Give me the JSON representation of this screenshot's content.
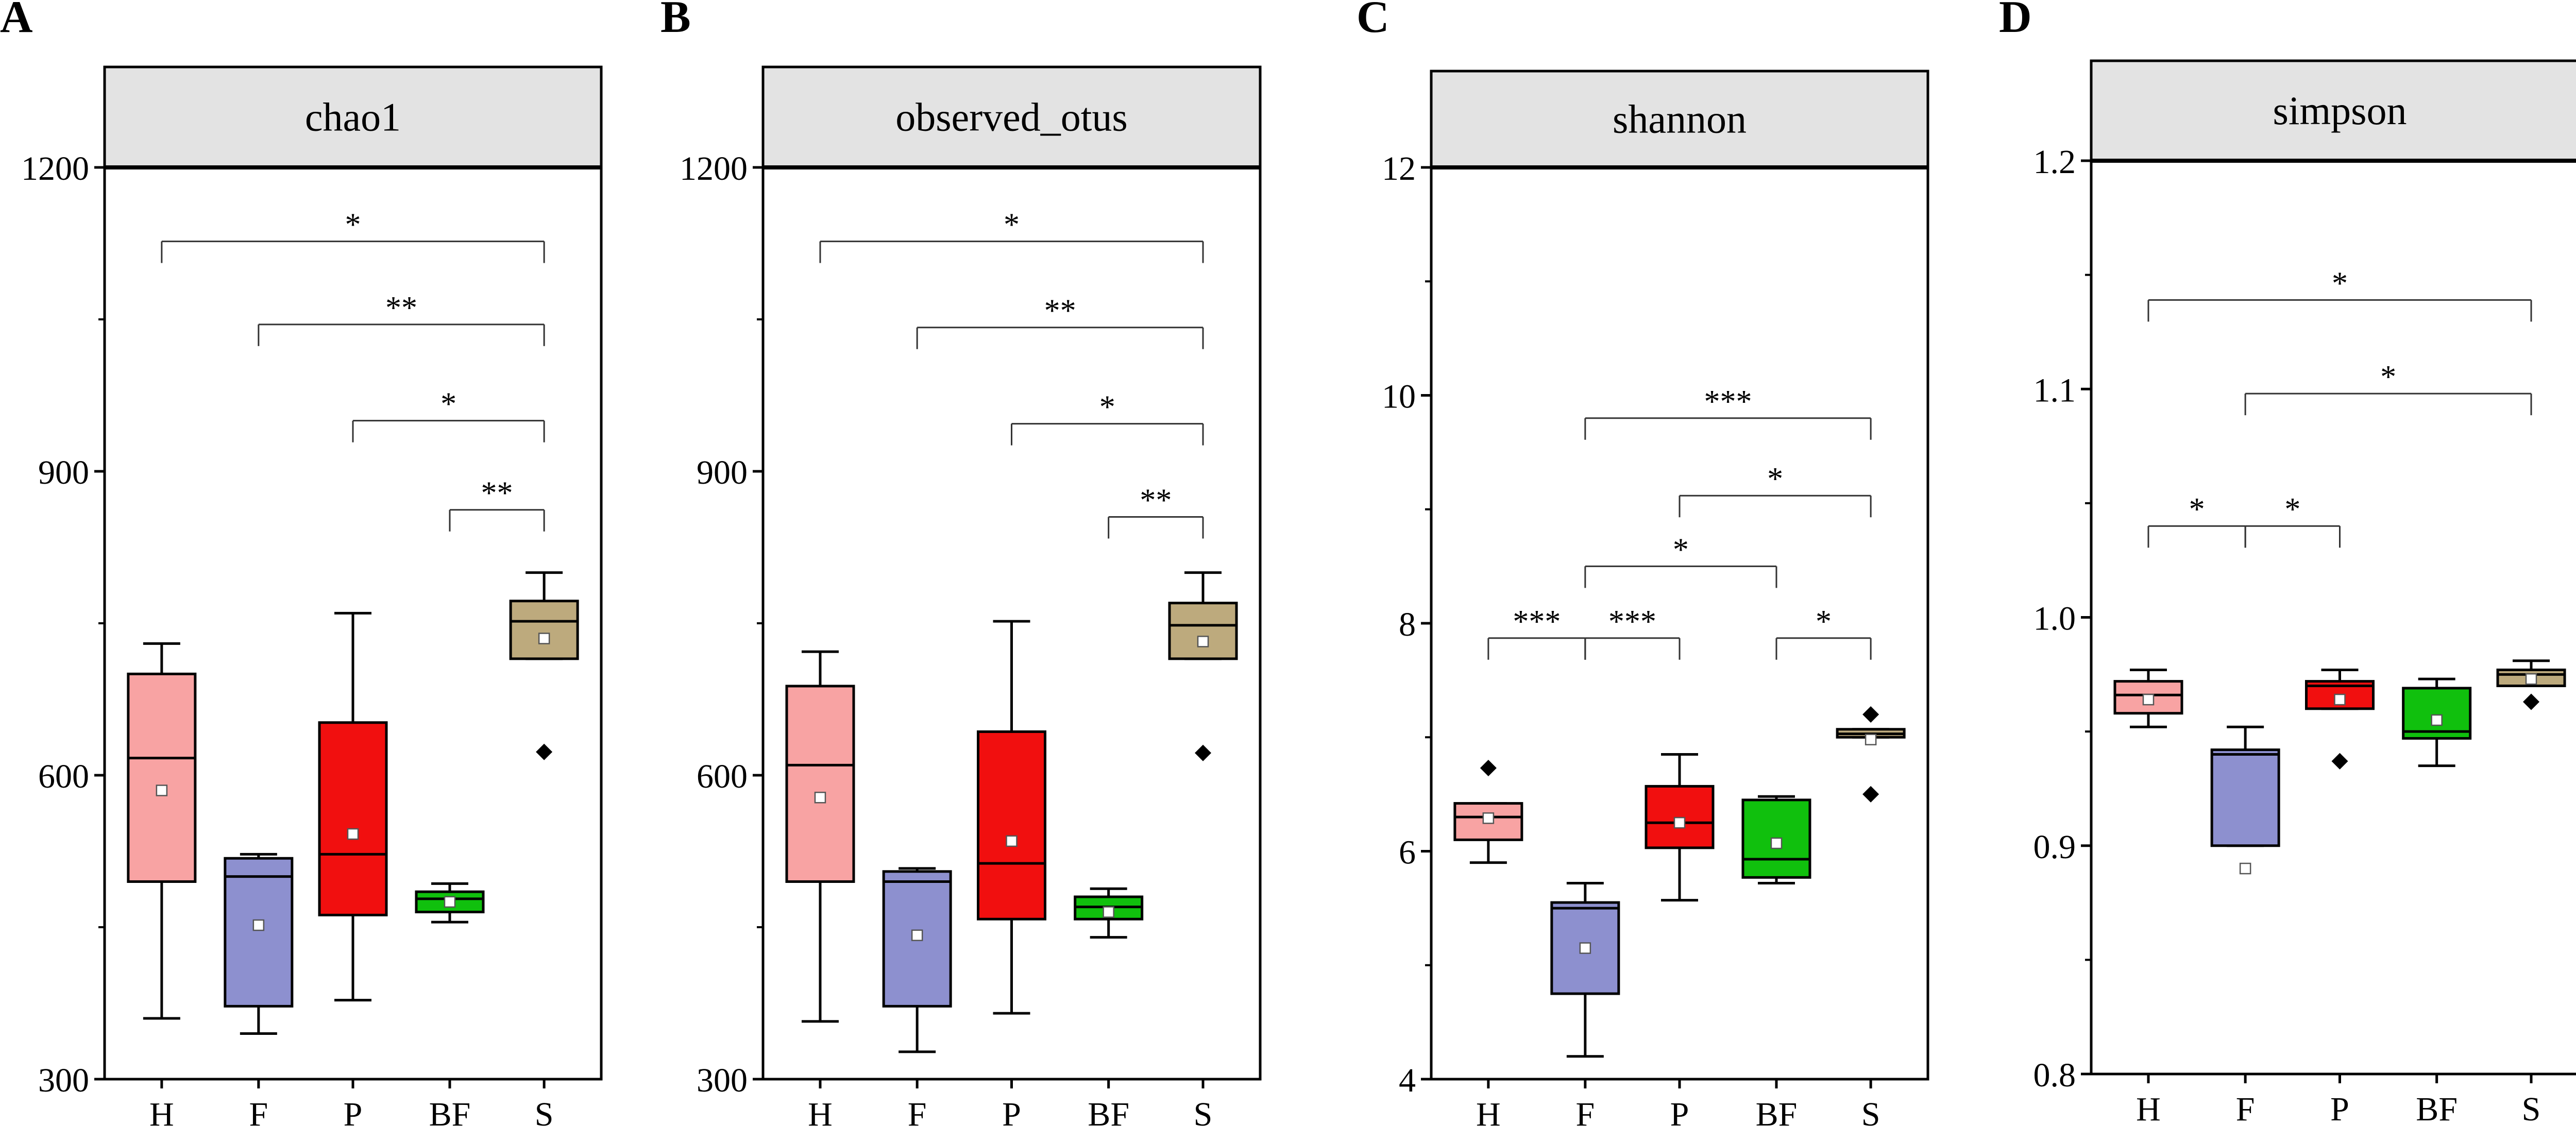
{
  "figure": {
    "panels": [
      {
        "letter": "A",
        "title": "chao1"
      },
      {
        "letter": "B",
        "title": "observed_otus"
      },
      {
        "letter": "C",
        "title": "shannon"
      },
      {
        "letter": "D",
        "title": "simpson"
      }
    ]
  },
  "colors": {
    "H": "#F8A3A3",
    "F": "#8D90CF",
    "P": "#F10F0F",
    "BF": "#10C00D",
    "S": "#BDAA7D",
    "outline": "#000000",
    "header_fill": "#E3E3E3"
  },
  "chart_data": [
    {
      "type": "box",
      "panel": "A",
      "title": "chao1",
      "categories": [
        "H",
        "F",
        "P",
        "BF",
        "S"
      ],
      "ylim": [
        300,
        1200
      ],
      "ytick_labels": [
        "300",
        "600",
        "900",
        "1200"
      ],
      "minor_ticks": true,
      "boxes": [
        {
          "name": "H",
          "min": 360,
          "q1": 495,
          "median": 617,
          "q3": 700,
          "max": 730,
          "mean": 585,
          "outliers": []
        },
        {
          "name": "F",
          "min": 345,
          "q1": 372,
          "median": 500,
          "q3": 518,
          "max": 522,
          "mean": 452,
          "outliers": []
        },
        {
          "name": "P",
          "min": 378,
          "q1": 462,
          "median": 522,
          "q3": 652,
          "max": 760,
          "mean": 542,
          "outliers": []
        },
        {
          "name": "BF",
          "min": 455,
          "q1": 465,
          "median": 478,
          "q3": 485,
          "max": 493,
          "mean": 475,
          "outliers": []
        },
        {
          "name": "S",
          "min": 715,
          "q1": 715,
          "median": 752,
          "q3": 772,
          "max": 800,
          "mean": 735,
          "outliers": [
            623
          ]
        }
      ],
      "significance": [
        {
          "from": "H",
          "to": "S",
          "label": "*",
          "y": 1127
        },
        {
          "from": "F",
          "to": "S",
          "label": "**",
          "y": 1045
        },
        {
          "from": "P",
          "to": "S",
          "label": "*",
          "y": 950
        },
        {
          "from": "BF",
          "to": "S",
          "label": "**",
          "y": 862
        }
      ]
    },
    {
      "type": "box",
      "panel": "B",
      "title": "observed_otus",
      "categories": [
        "H",
        "F",
        "P",
        "BF",
        "S"
      ],
      "ylim": [
        300,
        1200
      ],
      "ytick_labels": [
        "300",
        "600",
        "900",
        "1200"
      ],
      "minor_ticks": true,
      "boxes": [
        {
          "name": "H",
          "min": 357,
          "q1": 495,
          "median": 610,
          "q3": 688,
          "max": 722,
          "mean": 578,
          "outliers": []
        },
        {
          "name": "F",
          "min": 327,
          "q1": 372,
          "median": 495,
          "q3": 505,
          "max": 508,
          "mean": 442,
          "outliers": []
        },
        {
          "name": "P",
          "min": 365,
          "q1": 458,
          "median": 513,
          "q3": 643,
          "max": 752,
          "mean": 535,
          "outliers": []
        },
        {
          "name": "BF",
          "min": 440,
          "q1": 458,
          "median": 470,
          "q3": 480,
          "max": 488,
          "mean": 465,
          "outliers": []
        },
        {
          "name": "S",
          "min": 715,
          "q1": 715,
          "median": 748,
          "q3": 770,
          "max": 800,
          "mean": 732,
          "outliers": [
            622
          ]
        }
      ],
      "significance": [
        {
          "from": "H",
          "to": "S",
          "label": "*",
          "y": 1127
        },
        {
          "from": "F",
          "to": "S",
          "label": "**",
          "y": 1042
        },
        {
          "from": "P",
          "to": "S",
          "label": "*",
          "y": 947
        },
        {
          "from": "BF",
          "to": "S",
          "label": "**",
          "y": 855
        }
      ]
    },
    {
      "type": "box",
      "panel": "C",
      "title": "shannon",
      "categories": [
        "H",
        "F",
        "P",
        "BF",
        "S"
      ],
      "ylim": [
        4,
        12
      ],
      "ytick_labels": [
        "4",
        "6",
        "8",
        "10",
        "12"
      ],
      "minor_ticks": true,
      "boxes": [
        {
          "name": "H",
          "min": 5.9,
          "q1": 6.1,
          "median": 6.3,
          "q3": 6.42,
          "max": 6.42,
          "mean": 6.29,
          "outliers": [
            6.73
          ]
        },
        {
          "name": "F",
          "min": 4.2,
          "q1": 4.75,
          "median": 5.5,
          "q3": 5.55,
          "max": 5.72,
          "mean": 5.15,
          "outliers": []
        },
        {
          "name": "P",
          "min": 5.57,
          "q1": 6.03,
          "median": 6.25,
          "q3": 6.57,
          "max": 6.85,
          "mean": 6.25,
          "outliers": []
        },
        {
          "name": "BF",
          "min": 5.72,
          "q1": 5.77,
          "median": 5.93,
          "q3": 6.45,
          "max": 6.48,
          "mean": 6.07,
          "outliers": []
        },
        {
          "name": "S",
          "min": 7.0,
          "q1": 7.0,
          "median": 7.03,
          "q3": 7.07,
          "max": 7.07,
          "mean": 6.98,
          "outliers": [
            7.2,
            6.5
          ]
        }
      ],
      "significance": [
        {
          "from": "F",
          "to": "S",
          "label": "***",
          "y": 9.8
        },
        {
          "from": "P",
          "to": "S",
          "label": "*",
          "y": 9.12
        },
        {
          "from": "F",
          "to": "BF",
          "label": "*",
          "y": 8.5
        },
        {
          "from": "H",
          "to": "F",
          "label": "***",
          "y": 7.87
        },
        {
          "from": "F",
          "to": "P",
          "label": "***",
          "y": 7.87
        },
        {
          "from": "BF",
          "to": "S",
          "label": "*",
          "y": 7.87
        }
      ]
    },
    {
      "type": "box",
      "panel": "D",
      "title": "simpson",
      "categories": [
        "H",
        "F",
        "P",
        "BF",
        "S"
      ],
      "ylim": [
        0.8,
        1.2
      ],
      "ytick_labels": [
        "0.8",
        "0.9",
        "1.0",
        "1.1",
        "1.2"
      ],
      "minor_ticks": true,
      "boxes": [
        {
          "name": "H",
          "min": 0.952,
          "q1": 0.958,
          "median": 0.966,
          "q3": 0.972,
          "max": 0.977,
          "mean": 0.964,
          "outliers": []
        },
        {
          "name": "F",
          "min": 0.9,
          "q1": 0.9,
          "median": 0.94,
          "q3": 0.942,
          "max": 0.952,
          "mean": 0.89,
          "outliers": []
        },
        {
          "name": "P",
          "min": 0.96,
          "q1": 0.96,
          "median": 0.97,
          "q3": 0.972,
          "max": 0.977,
          "mean": 0.964,
          "outliers": [
            0.937
          ]
        },
        {
          "name": "BF",
          "min": 0.935,
          "q1": 0.947,
          "median": 0.95,
          "q3": 0.969,
          "max": 0.973,
          "mean": 0.955,
          "outliers": []
        },
        {
          "name": "S",
          "min": 0.97,
          "q1": 0.97,
          "median": 0.975,
          "q3": 0.977,
          "max": 0.981,
          "mean": 0.973,
          "outliers": [
            0.963
          ]
        }
      ],
      "significance": [
        {
          "from": "H",
          "to": "S",
          "label": "*",
          "y": 1.139
        },
        {
          "from": "F",
          "to": "S",
          "label": "*",
          "y": 1.098
        },
        {
          "from": "H",
          "to": "F",
          "label": "*",
          "y": 1.04
        },
        {
          "from": "F",
          "to": "P",
          "label": "*",
          "y": 1.04
        }
      ]
    }
  ]
}
